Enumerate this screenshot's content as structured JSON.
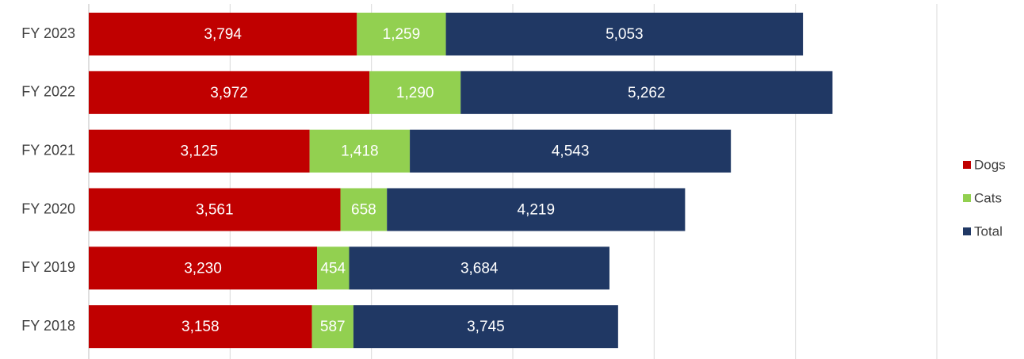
{
  "chart_data": {
    "type": "stacked-bar-horizontal",
    "categories": [
      "FY 2023",
      "FY 2022",
      "FY 2021",
      "FY 2020",
      "FY 2019",
      "FY 2018"
    ],
    "series": [
      {
        "name": "Dogs",
        "color": "#c00000",
        "values": [
          3794,
          3972,
          3125,
          3561,
          3230,
          3158
        ],
        "value_labels": [
          "3,794",
          "3,972",
          "3,125",
          "3,561",
          "3,230",
          "3,158"
        ]
      },
      {
        "name": "Cats",
        "color": "#92d050",
        "values": [
          1259,
          1290,
          1418,
          658,
          454,
          587
        ],
        "value_labels": [
          "1,259",
          "1,290",
          "1,418",
          "658",
          "454",
          "587"
        ]
      },
      {
        "name": "Total",
        "color": "#203864",
        "values": [
          5053,
          5262,
          4543,
          4219,
          3684,
          3745
        ],
        "value_labels": [
          "5,053",
          "5,262",
          "4,543",
          "4,219",
          "3,684",
          "3,745"
        ]
      }
    ],
    "xlim": [
      0,
      12000
    ],
    "xticks": [
      0,
      2000,
      4000,
      6000,
      8000,
      10000,
      12000
    ],
    "grid": true,
    "legend": "right"
  }
}
